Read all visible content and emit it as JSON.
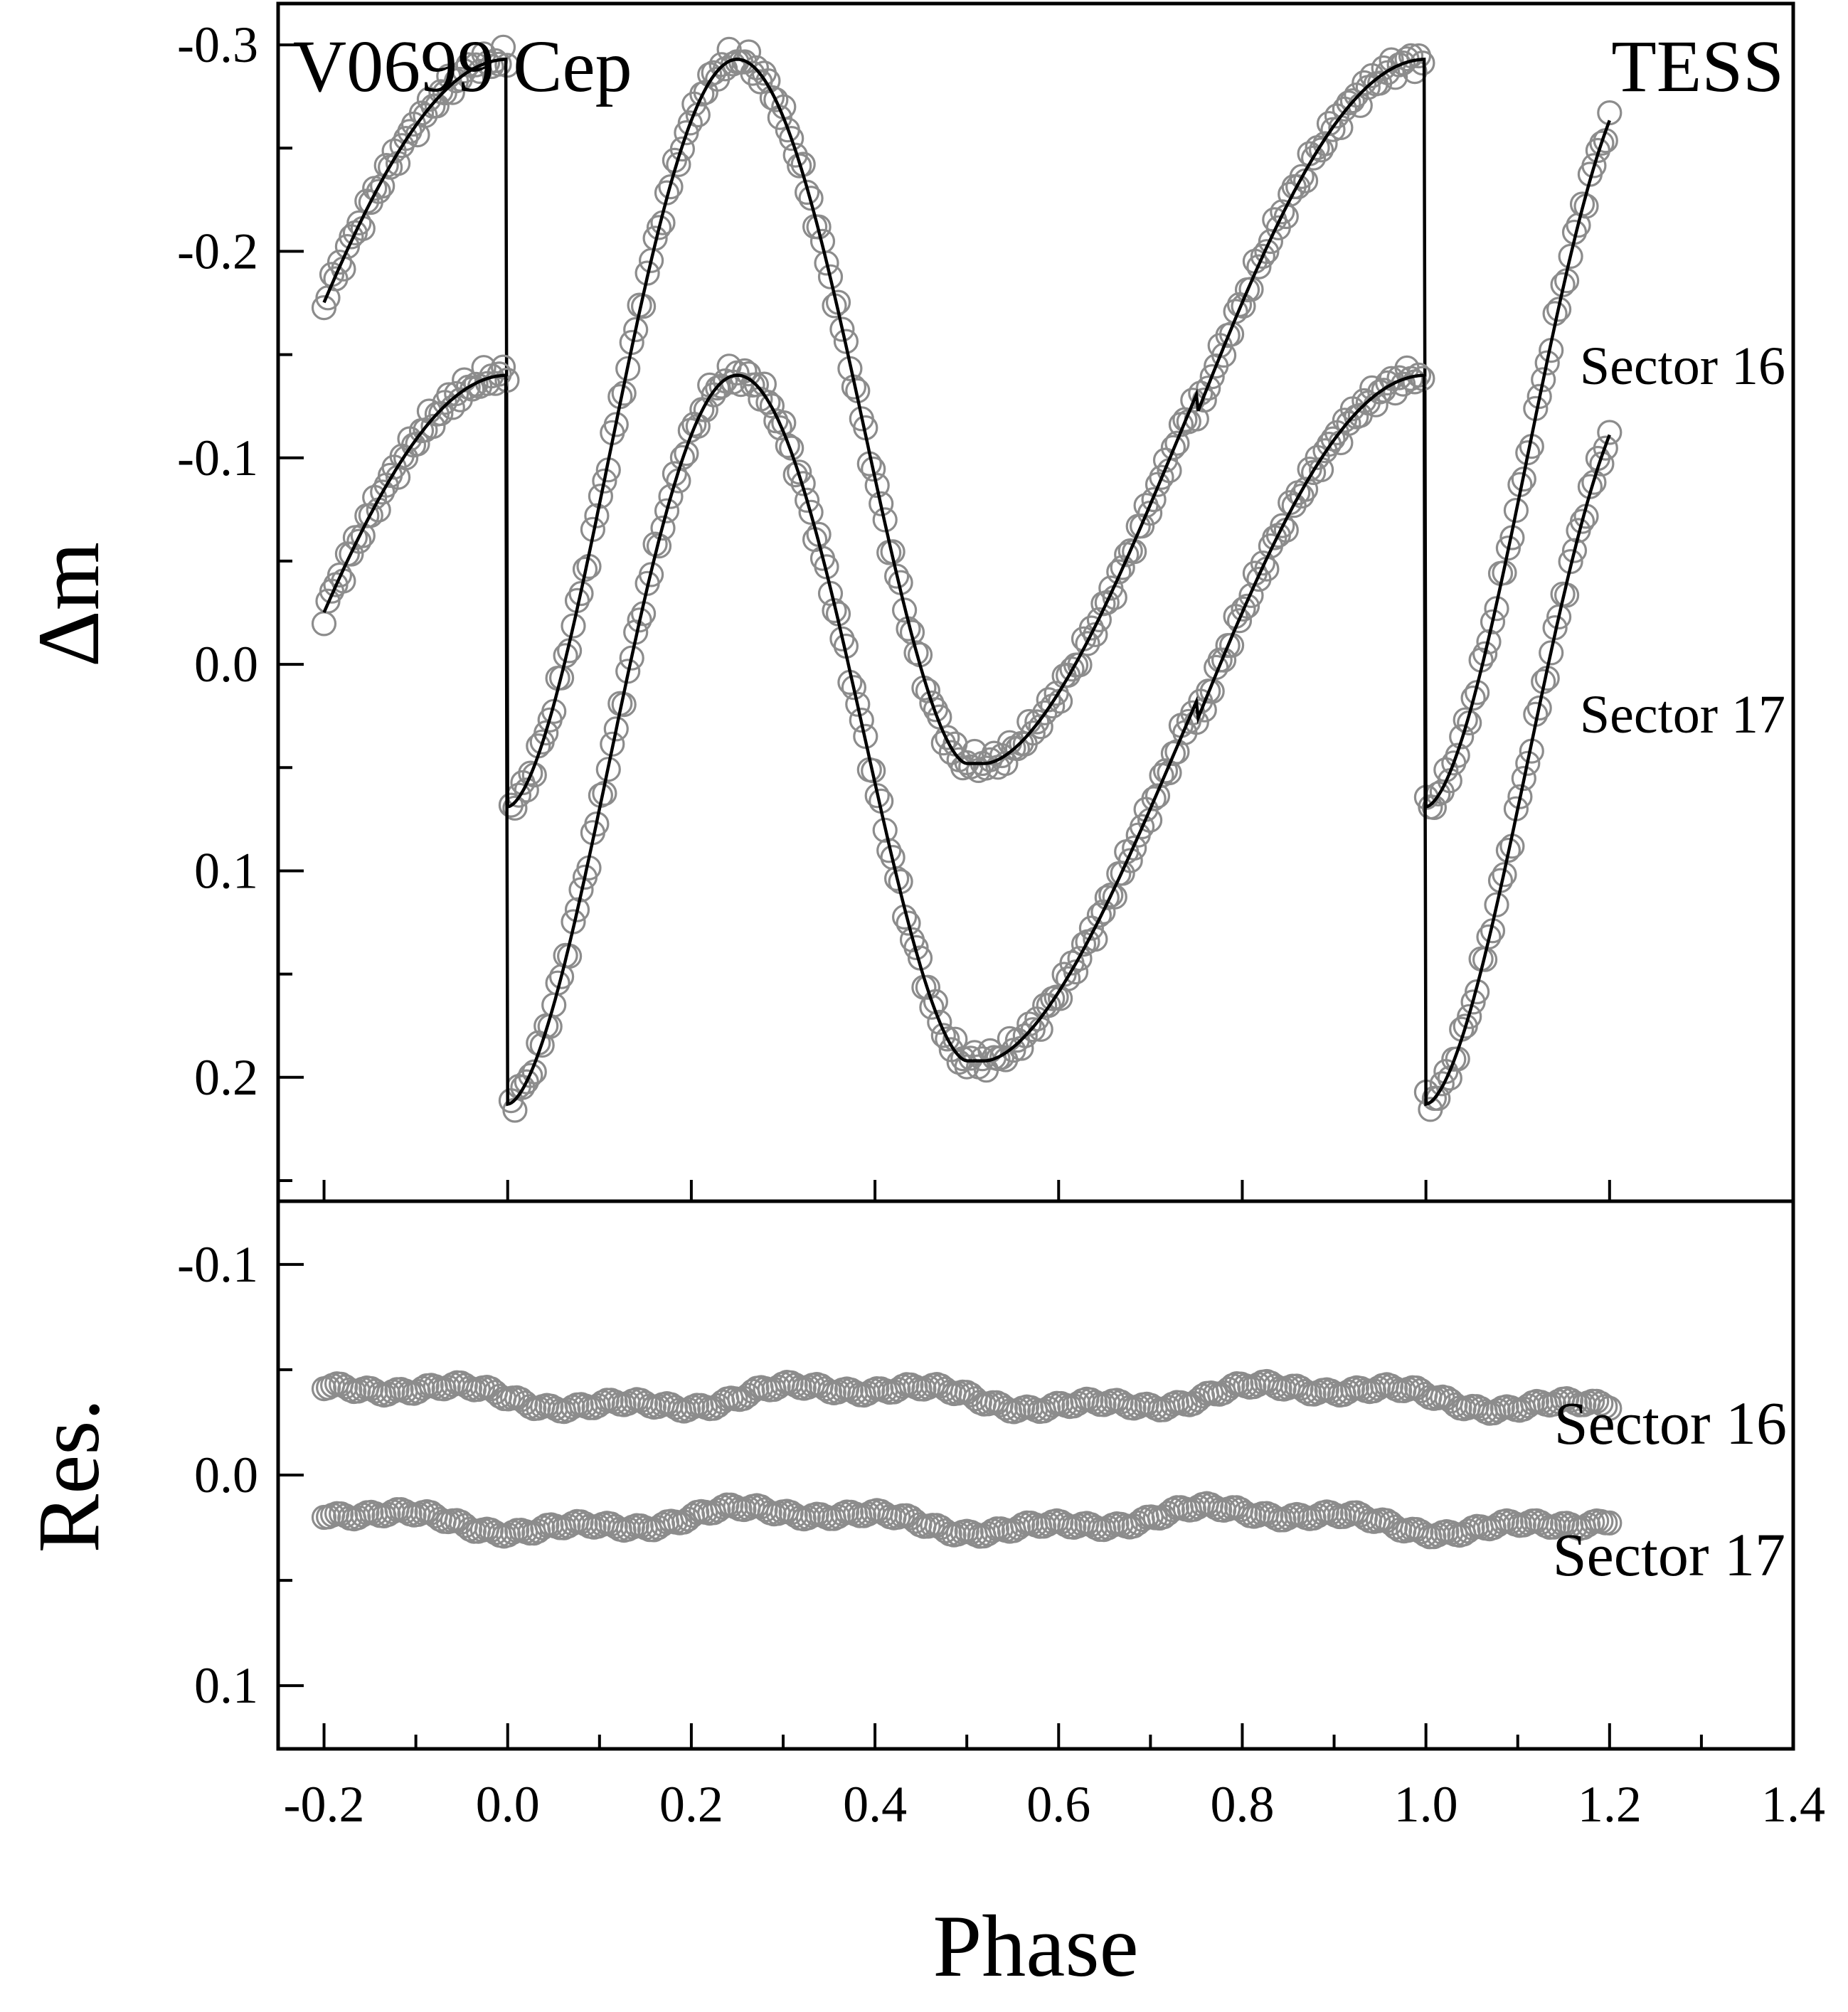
{
  "chart_data": [
    {
      "panel": "light-curve",
      "type": "scatter",
      "title": "V0699 Cep",
      "instrument": "TESS",
      "xlabel": "",
      "ylabel": "Δm",
      "xlim": [
        -0.25,
        1.4
      ],
      "ylim": [
        0.26,
        -0.32
      ],
      "y_inverted": true,
      "yticks": [
        -0.3,
        -0.2,
        -0.1,
        0.0,
        0.1,
        0.2
      ],
      "ytick_labels": [
        "-0.3",
        "-0.2",
        "-0.1",
        "0.0",
        "0.1",
        "0.2"
      ],
      "series": [
        {
          "name": "Sector 16",
          "marker": "open-circle",
          "fit_line": true,
          "curve_model": {
            "phase_range": [
              -0.2,
              1.2
            ],
            "maxima_dm": -0.293,
            "primary_min_dm": 0.069,
            "secondary_min_dm": 0.048,
            "secondary_flat_halfwidth_phase": 0.02
          }
        },
        {
          "name": "Sector 17",
          "marker": "open-circle",
          "fit_line": true,
          "curve_model": {
            "phase_range": [
              -0.2,
              1.2
            ],
            "maxima_dm": -0.14,
            "primary_min_dm": 0.213,
            "secondary_min_dm": 0.192,
            "secondary_flat_halfwidth_phase": 0.02
          }
        }
      ],
      "annotations": [
        "Sector 16",
        "Sector 17"
      ]
    },
    {
      "panel": "residuals",
      "type": "scatter",
      "xlabel": "Phase",
      "ylabel": "Res.",
      "xlim": [
        -0.25,
        1.4
      ],
      "ylim": [
        0.13,
        -0.13
      ],
      "y_inverted": true,
      "xticks": [
        -0.2,
        0.0,
        0.2,
        0.4,
        0.6,
        0.8,
        1.0,
        1.2,
        1.4
      ],
      "xtick_labels": [
        "-0.2",
        "0.0",
        "0.2",
        "0.4",
        "0.6",
        "0.8",
        "1.0",
        "1.2",
        "1.4"
      ],
      "yticks": [
        -0.1,
        0.0,
        0.1
      ],
      "ytick_labels": [
        "-0.1",
        "0.0",
        "0.1"
      ],
      "series": [
        {
          "name": "Sector 16",
          "marker": "open-circle",
          "offset": -0.04,
          "scatter_range": [
            -0.046,
            -0.028
          ]
        },
        {
          "name": "Sector 17",
          "marker": "open-circle",
          "offset": 0.023,
          "scatter_range": [
            0.013,
            0.03
          ]
        }
      ],
      "annotations": [
        "Sector 16",
        "Sector 17"
      ]
    }
  ]
}
